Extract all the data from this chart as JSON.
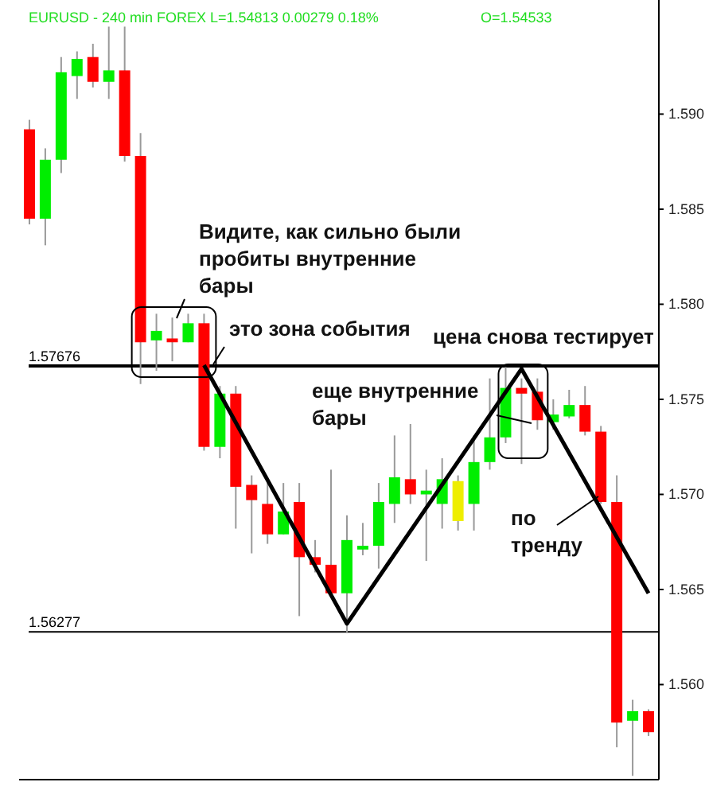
{
  "chart_data": {
    "type": "candlestick",
    "title": "EURUSD - 240 min FOREX L=1.54813 0.00279 0.18%",
    "subtitle": "O=1.54533",
    "categories": [
      null,
      null,
      null,
      null,
      null,
      null,
      null,
      null,
      null,
      null,
      null,
      null,
      null,
      null,
      null,
      null,
      null,
      null,
      null,
      null,
      null,
      null,
      null,
      null,
      null,
      null,
      null,
      null,
      null,
      null,
      null,
      null,
      null,
      null,
      null,
      null,
      null,
      null,
      null,
      null
    ],
    "ohlc": [
      [
        1.5892,
        1.5897,
        1.5842,
        1.5845
      ],
      [
        1.5845,
        1.5882,
        1.5831,
        1.5876
      ],
      [
        1.5876,
        1.593,
        1.5869,
        1.5922
      ],
      [
        1.592,
        1.5933,
        1.5908,
        1.5929
      ],
      [
        1.593,
        1.5937,
        1.5914,
        1.5917
      ],
      [
        1.5917,
        1.5946,
        1.5908,
        1.5923
      ],
      [
        1.5923,
        1.5946,
        1.5875,
        1.5878
      ],
      [
        1.5878,
        1.589,
        1.5758,
        1.578
      ],
      [
        1.5781,
        1.5795,
        1.5765,
        1.5786
      ],
      [
        1.5782,
        1.5793,
        1.577,
        1.578
      ],
      [
        1.578,
        1.5795,
        1.578,
        1.579
      ],
      [
        1.579,
        1.5795,
        1.5723,
        1.5725
      ],
      [
        1.5725,
        1.5757,
        1.5719,
        1.5753
      ],
      [
        1.5753,
        1.5757,
        1.5682,
        1.5704
      ],
      [
        1.5705,
        1.571,
        1.5669,
        1.5697
      ],
      [
        1.5695,
        1.5706,
        1.5674,
        1.5679
      ],
      [
        1.5679,
        1.5706,
        1.5679,
        1.5691
      ],
      [
        1.5696,
        1.5706,
        1.5636,
        1.5667
      ],
      [
        1.5667,
        1.5676,
        1.5659,
        1.5663
      ],
      [
        1.5663,
        1.5713,
        1.5647,
        1.5648
      ],
      [
        1.5648,
        1.5689,
        1.5627,
        1.5676
      ],
      [
        1.5671,
        1.5685,
        1.5668,
        1.5673
      ],
      [
        1.5673,
        1.5706,
        1.5661,
        1.5696
      ],
      [
        1.5695,
        1.5731,
        1.5685,
        1.5709
      ],
      [
        1.5708,
        1.5737,
        1.5695,
        1.57
      ],
      [
        1.57,
        1.5713,
        1.5665,
        1.5702
      ],
      [
        1.5695,
        1.5719,
        1.5682,
        1.5708
      ],
      [
        1.5707,
        1.571,
        1.5681,
        1.5686
      ],
      [
        1.5695,
        1.5731,
        1.5681,
        1.5717
      ],
      [
        1.5717,
        1.5761,
        1.5713,
        1.573
      ],
      [
        1.573,
        1.5767,
        1.5727,
        1.5756
      ],
      [
        1.5756,
        1.5761,
        1.5716,
        1.5753
      ],
      [
        1.5754,
        1.5761,
        1.5734,
        1.5739
      ],
      [
        1.5738,
        1.575,
        1.5734,
        1.5742
      ],
      [
        1.5741,
        1.5755,
        1.574,
        1.5747
      ],
      [
        1.5747,
        1.5757,
        1.5731,
        1.5733
      ],
      [
        1.5733,
        1.5736,
        1.5695,
        1.5696
      ],
      [
        1.5696,
        1.571,
        1.5567,
        1.558
      ],
      [
        1.5581,
        1.5592,
        1.5552,
        1.5586
      ],
      [
        1.5586,
        1.5587,
        1.5573,
        1.5575
      ]
    ],
    "colors": [
      "#ff0000",
      "#00ee00",
      "#00ee00",
      "#00ee00",
      "#ff0000",
      "#00ee00",
      "#ff0000",
      "#ff0000",
      "#00ee00",
      "#ff0000",
      "#00ee00",
      "#ff0000",
      "#00ee00",
      "#ff0000",
      "#ff0000",
      "#ff0000",
      "#00ee00",
      "#ff0000",
      "#ff0000",
      "#ff0000",
      "#00ee00",
      "#00ee00",
      "#00ee00",
      "#00ee00",
      "#ff0000",
      "#00ee00",
      "#00ee00",
      "#eeee00",
      "#00ee00",
      "#00ee00",
      "#00ee00",
      "#ff0000",
      "#ff0000",
      "#00ee00",
      "#00ee00",
      "#ff0000",
      "#ff0000",
      "#ff0000",
      "#00ee00",
      "#ff0000"
    ],
    "series": [
      {
        "type": "line",
        "color": "#000000",
        "values": [
          null,
          null,
          null,
          null,
          null,
          null,
          null,
          null,
          null,
          null,
          null,
          1.5768,
          null,
          null,
          null,
          null,
          null,
          null,
          null,
          null,
          1.5632,
          null,
          null,
          null,
          null,
          null,
          null,
          null,
          null,
          null,
          null,
          1.5766,
          null,
          null,
          null,
          null,
          null,
          null,
          null,
          1.5648
        ]
      }
    ],
    "ylim": [
      1.555,
      1.596
    ],
    "yticks": [
      {
        "value": 1.56,
        "label": "1.560"
      },
      {
        "value": 1.565,
        "label": "1.565"
      },
      {
        "value": 1.57,
        "label": "1.570"
      },
      {
        "value": 1.575,
        "label": "1.575"
      },
      {
        "value": 1.58,
        "label": "1.580"
      },
      {
        "value": 1.585,
        "label": "1.585"
      },
      {
        "value": 1.59,
        "label": "1.590"
      }
    ],
    "tick_labels": "y",
    "ref_lines": [
      {
        "axis": "y",
        "value": 1.57676,
        "label": "1.57676",
        "color": "#000000"
      },
      {
        "axis": "y",
        "value": 1.56277,
        "label": "1.56277",
        "color": "#000000"
      }
    ],
    "annotations": [
      "Видите, как сильно были пробиты внутренние бары",
      "это зона события",
      "цена снова тестирует",
      "еще внутренние бары",
      "по тренду"
    ]
  }
}
